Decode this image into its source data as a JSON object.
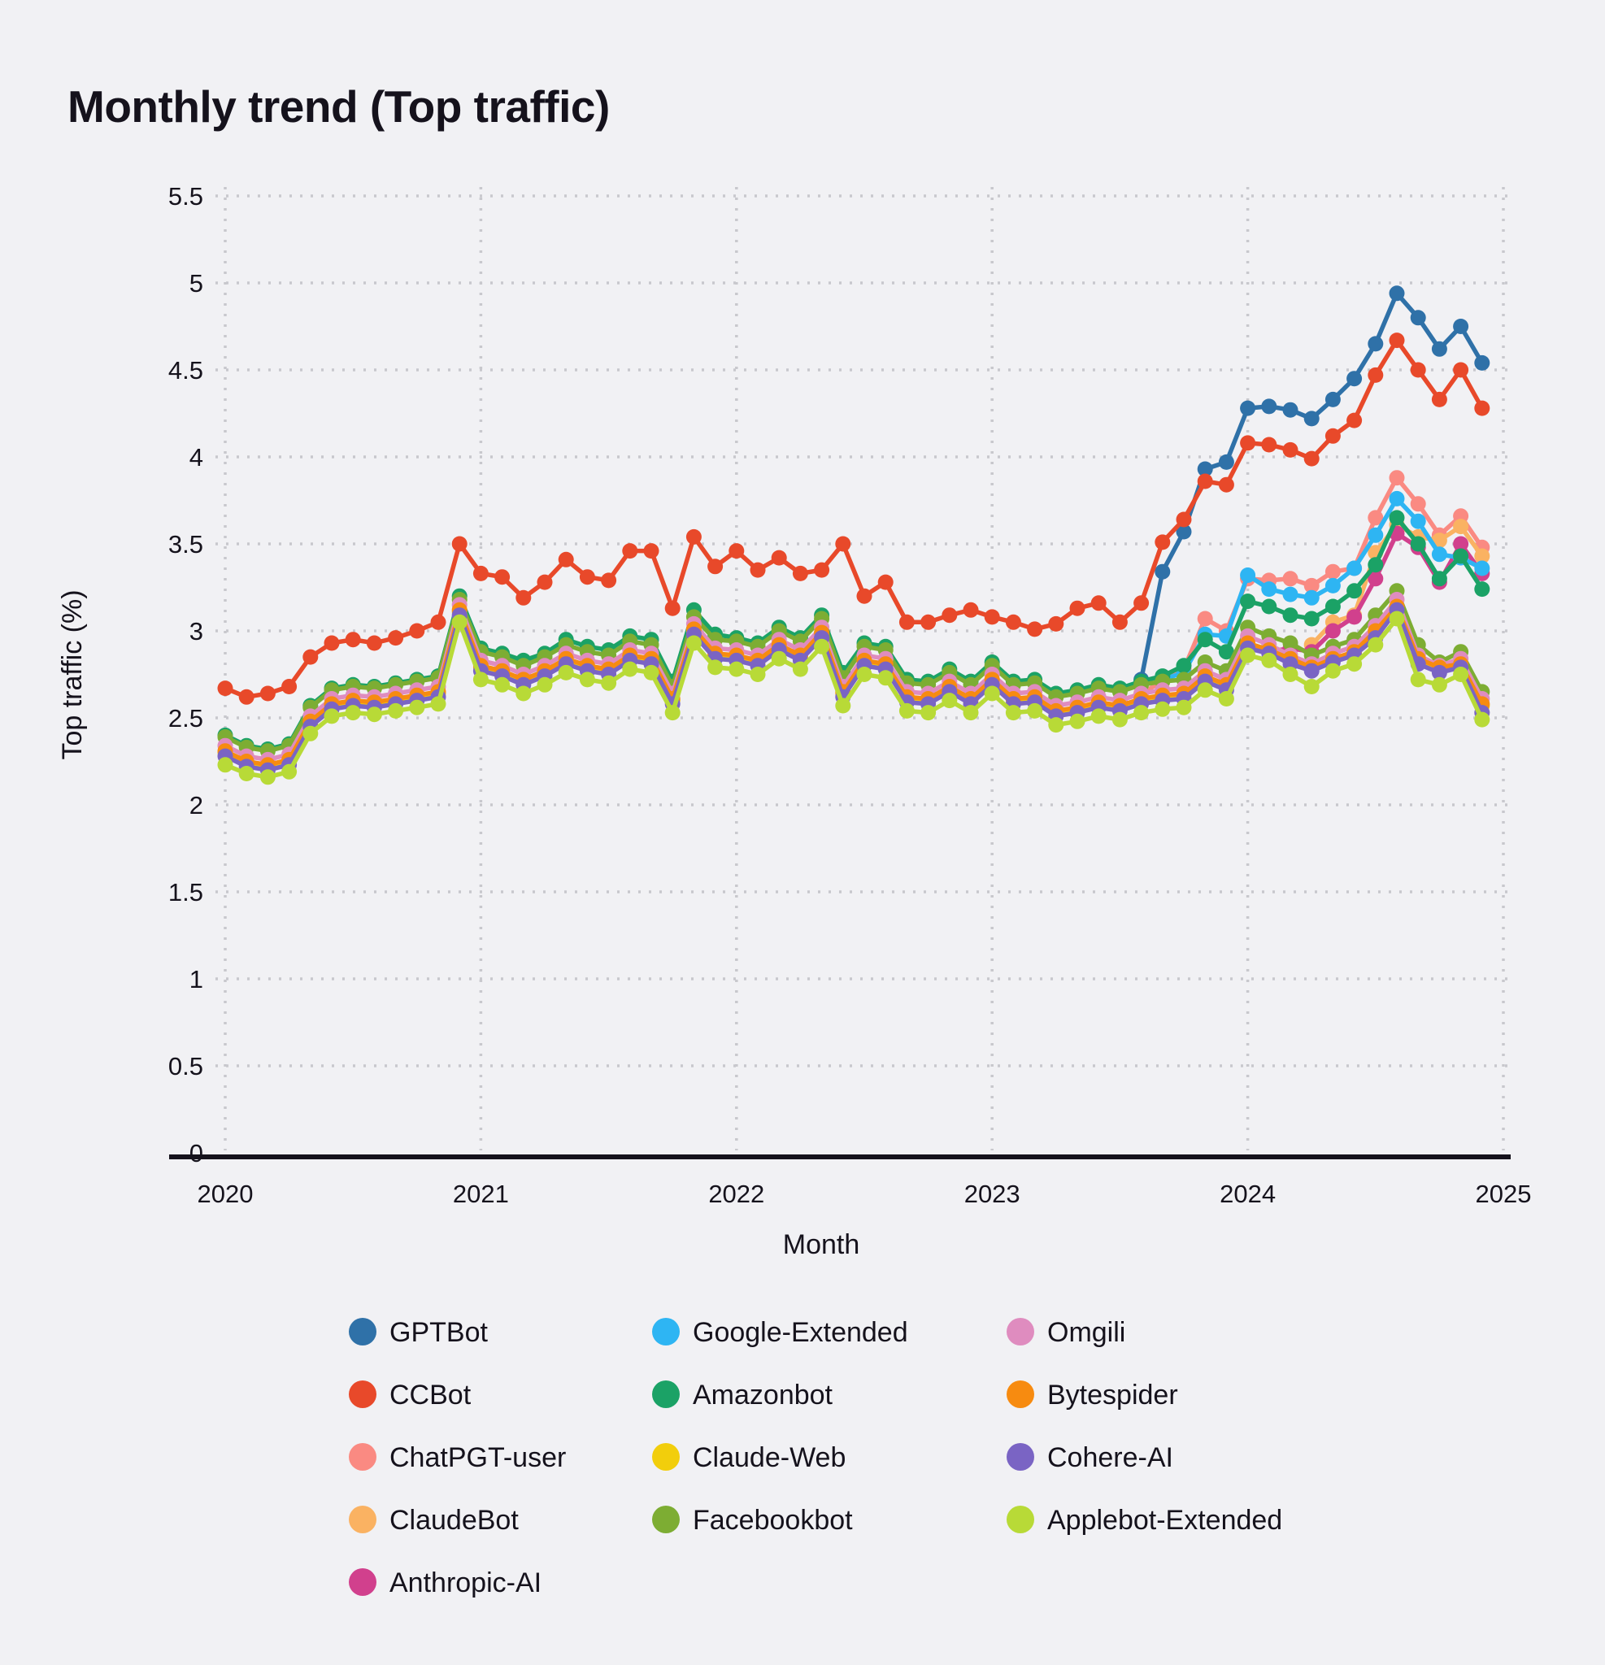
{
  "title": "Monthly trend (Top traffic)",
  "chart_data": {
    "type": "line",
    "title": "Monthly trend (Top traffic)",
    "xlabel": "Month",
    "ylabel": "Top traffic (%)",
    "ylim": [
      0,
      5.5
    ],
    "grid": "dotted",
    "legend_position": "bottom",
    "ytick_labels": [
      "0",
      "0.5",
      "1",
      "1.5",
      "2",
      "2.5",
      "3",
      "3.5",
      "4",
      "4.5",
      "5",
      "5.5"
    ],
    "xtick_labels": [
      "2020",
      "2021",
      "2022",
      "2023",
      "2024",
      "2025"
    ],
    "months": [
      "2020-01",
      "2020-02",
      "2020-03",
      "2020-04",
      "2020-05",
      "2020-06",
      "2020-07",
      "2020-08",
      "2020-09",
      "2020-10",
      "2020-11",
      "2020-12",
      "2021-01",
      "2021-02",
      "2021-03",
      "2021-04",
      "2021-05",
      "2021-06",
      "2021-07",
      "2021-08",
      "2021-09",
      "2021-10",
      "2021-11",
      "2021-12",
      "2022-01",
      "2022-02",
      "2022-03",
      "2022-04",
      "2022-05",
      "2022-06",
      "2022-07",
      "2022-08",
      "2022-09",
      "2022-10",
      "2022-11",
      "2022-12",
      "2023-01",
      "2023-02",
      "2023-03",
      "2023-04",
      "2023-05",
      "2023-06",
      "2023-07",
      "2023-08",
      "2023-09",
      "2023-10",
      "2023-11",
      "2023-12",
      "2024-01",
      "2024-02",
      "2024-03",
      "2024-04",
      "2024-05",
      "2024-06",
      "2024-07",
      "2024-08",
      "2024-09",
      "2024-10",
      "2024-11",
      "2024-12"
    ],
    "series": [
      {
        "name": "GPTBot",
        "color": "#2f71a8",
        "start": 43,
        "values": [
          2.72,
          3.34,
          3.57,
          3.93,
          3.97,
          4.28,
          4.29,
          4.27,
          4.22,
          4.33,
          4.45,
          4.65,
          4.94,
          4.8,
          4.62,
          4.75,
          4.54
        ]
      },
      {
        "name": "CCBot",
        "color": "#e8492a",
        "start": 0,
        "values": [
          2.67,
          2.62,
          2.64,
          2.68,
          2.85,
          2.93,
          2.95,
          2.93,
          2.96,
          3.0,
          3.05,
          3.5,
          3.33,
          3.31,
          3.19,
          3.28,
          3.41,
          3.31,
          3.29,
          3.46,
          3.46,
          3.13,
          3.54,
          3.37,
          3.46,
          3.35,
          3.42,
          3.33,
          3.35,
          3.5,
          3.2,
          3.28,
          3.05,
          3.05,
          3.09,
          3.12,
          3.08,
          3.05,
          3.01,
          3.04,
          3.13,
          3.16,
          3.05,
          3.16,
          3.51,
          3.64,
          3.86,
          3.84,
          4.08,
          4.07,
          4.04,
          3.99,
          4.12,
          4.21,
          4.47,
          4.67,
          4.5,
          4.33,
          4.5,
          4.28
        ]
      },
      {
        "name": "ChatPGT-user",
        "color": "#fa8a82",
        "start": 43,
        "values": [
          2.64,
          2.71,
          2.78,
          3.07,
          3.0,
          3.3,
          3.29,
          3.3,
          3.26,
          3.34,
          3.36,
          3.65,
          3.88,
          3.73,
          3.55,
          3.66,
          3.48
        ]
      },
      {
        "name": "ClaudeBot",
        "color": "#fab262",
        "start": 51,
        "values": [
          2.92,
          3.05,
          3.09,
          3.45,
          3.61,
          3.54,
          3.52,
          3.6,
          3.43
        ]
      },
      {
        "name": "Anthropic-AI",
        "color": "#d1408d",
        "start": 49,
        "values": [
          2.88,
          2.9,
          2.88,
          3.0,
          3.08,
          3.3,
          3.56,
          3.48,
          3.28,
          3.5,
          3.33
        ]
      },
      {
        "name": "Google-Extended",
        "color": "#2eb5f3",
        "start": 44,
        "values": [
          2.72,
          2.76,
          2.98,
          2.97,
          3.32,
          3.24,
          3.21,
          3.19,
          3.26,
          3.36,
          3.55,
          3.76,
          3.63,
          3.44,
          3.42,
          3.36
        ]
      },
      {
        "name": "Amazonbot",
        "color": "#1ba266",
        "start": 0,
        "values": [
          2.4,
          2.34,
          2.32,
          2.35,
          2.57,
          2.67,
          2.69,
          2.68,
          2.7,
          2.72,
          2.74,
          3.2,
          2.9,
          2.87,
          2.83,
          2.87,
          2.95,
          2.91,
          2.89,
          2.97,
          2.95,
          2.71,
          3.12,
          2.98,
          2.96,
          2.93,
          3.02,
          2.96,
          3.09,
          2.76,
          2.93,
          2.91,
          2.72,
          2.71,
          2.78,
          2.71,
          2.82,
          2.71,
          2.72,
          2.64,
          2.66,
          2.69,
          2.67,
          2.71,
          2.74,
          2.8,
          2.95,
          2.88,
          3.17,
          3.14,
          3.09,
          3.07,
          3.14,
          3.23,
          3.38,
          3.65,
          3.5,
          3.3,
          3.43,
          3.24
        ]
      },
      {
        "name": "Claude-Web",
        "color": "#f2ce0c",
        "start": 0,
        "values": [
          2.3,
          2.24,
          2.22,
          2.25,
          2.47,
          2.57,
          2.59,
          2.58,
          2.6,
          2.62,
          2.64,
          3.11,
          2.79,
          2.76,
          2.71,
          2.76,
          2.83,
          2.79,
          2.77,
          2.85,
          2.83,
          2.6,
          3.0,
          2.86,
          2.85,
          2.82,
          2.91,
          2.85,
          2.98,
          2.64,
          2.82,
          2.8,
          2.61,
          2.6,
          2.67,
          2.6,
          2.71,
          2.6,
          2.61,
          2.53,
          2.55,
          2.58,
          2.56,
          2.6,
          2.62,
          2.63,
          2.73,
          2.68,
          2.92,
          2.88,
          2.83,
          2.78,
          2.83,
          2.87,
          2.99,
          3.13,
          2.83,
          2.78,
          2.8,
          2.57
        ]
      },
      {
        "name": "Facebookbot",
        "color": "#7dad33",
        "start": 0,
        "values": [
          2.39,
          2.33,
          2.31,
          2.34,
          2.56,
          2.66,
          2.68,
          2.67,
          2.69,
          2.71,
          2.73,
          3.18,
          2.88,
          2.85,
          2.8,
          2.85,
          2.92,
          2.88,
          2.86,
          2.94,
          2.92,
          2.68,
          3.08,
          2.95,
          2.94,
          2.91,
          3.0,
          2.94,
          3.07,
          2.73,
          2.91,
          2.89,
          2.7,
          2.69,
          2.76,
          2.69,
          2.8,
          2.69,
          2.7,
          2.62,
          2.64,
          2.67,
          2.65,
          2.69,
          2.71,
          2.72,
          2.82,
          2.77,
          3.02,
          2.97,
          2.93,
          2.86,
          2.91,
          2.95,
          3.09,
          3.23,
          2.92,
          2.82,
          2.88,
          2.65
        ]
      },
      {
        "name": "Omgili",
        "color": "#df8cbf",
        "start": 0,
        "values": [
          2.34,
          2.28,
          2.26,
          2.29,
          2.51,
          2.61,
          2.63,
          2.62,
          2.64,
          2.66,
          2.68,
          3.15,
          2.83,
          2.8,
          2.75,
          2.8,
          2.87,
          2.83,
          2.81,
          2.89,
          2.87,
          2.64,
          3.04,
          2.9,
          2.89,
          2.86,
          2.95,
          2.89,
          3.02,
          2.68,
          2.86,
          2.84,
          2.65,
          2.64,
          2.71,
          2.64,
          2.75,
          2.64,
          2.65,
          2.57,
          2.59,
          2.62,
          2.6,
          2.64,
          2.66,
          2.67,
          2.77,
          2.72,
          2.97,
          2.92,
          2.86,
          2.81,
          2.87,
          2.91,
          3.03,
          3.18,
          2.86,
          2.8,
          2.84,
          2.61
        ]
      },
      {
        "name": "Bytespider",
        "color": "#f78b10",
        "start": 0,
        "values": [
          2.31,
          2.25,
          2.23,
          2.26,
          2.48,
          2.58,
          2.6,
          2.59,
          2.61,
          2.63,
          2.65,
          3.12,
          2.8,
          2.77,
          2.72,
          2.77,
          2.84,
          2.8,
          2.78,
          2.86,
          2.84,
          2.61,
          3.01,
          2.87,
          2.86,
          2.83,
          2.92,
          2.86,
          2.99,
          2.65,
          2.83,
          2.81,
          2.62,
          2.61,
          2.68,
          2.61,
          2.72,
          2.61,
          2.62,
          2.54,
          2.56,
          2.59,
          2.57,
          2.61,
          2.63,
          2.64,
          2.74,
          2.69,
          2.93,
          2.89,
          2.84,
          2.79,
          2.84,
          2.88,
          3.0,
          3.14,
          2.84,
          2.79,
          2.81,
          2.58
        ]
      },
      {
        "name": "Cohere-AI",
        "color": "#7a64c4",
        "start": 0,
        "values": [
          2.28,
          2.22,
          2.2,
          2.23,
          2.45,
          2.55,
          2.57,
          2.56,
          2.58,
          2.6,
          2.62,
          3.09,
          2.77,
          2.74,
          2.69,
          2.74,
          2.81,
          2.77,
          2.75,
          2.83,
          2.81,
          2.58,
          2.98,
          2.84,
          2.83,
          2.8,
          2.89,
          2.83,
          2.96,
          2.62,
          2.8,
          2.78,
          2.59,
          2.58,
          2.65,
          2.58,
          2.69,
          2.58,
          2.59,
          2.51,
          2.53,
          2.56,
          2.54,
          2.58,
          2.6,
          2.61,
          2.71,
          2.66,
          2.9,
          2.87,
          2.81,
          2.77,
          2.82,
          2.86,
          2.96,
          3.12,
          2.81,
          2.76,
          2.79,
          2.53
        ]
      },
      {
        "name": "Applebot-Extended",
        "color": "#b8da37",
        "start": 0,
        "values": [
          2.23,
          2.18,
          2.16,
          2.19,
          2.41,
          2.51,
          2.53,
          2.52,
          2.54,
          2.56,
          2.58,
          3.05,
          2.72,
          2.69,
          2.64,
          2.69,
          2.76,
          2.72,
          2.7,
          2.78,
          2.76,
          2.53,
          2.93,
          2.79,
          2.78,
          2.75,
          2.84,
          2.78,
          2.91,
          2.57,
          2.75,
          2.73,
          2.54,
          2.53,
          2.6,
          2.53,
          2.64,
          2.53,
          2.54,
          2.46,
          2.48,
          2.51,
          2.49,
          2.53,
          2.55,
          2.56,
          2.66,
          2.61,
          2.86,
          2.83,
          2.75,
          2.68,
          2.77,
          2.81,
          2.92,
          3.07,
          2.72,
          2.69,
          2.75,
          2.49
        ]
      }
    ]
  },
  "legend": {
    "order": [
      "GPTBot",
      "CCBot",
      "ChatPGT-user",
      "ClaudeBot",
      "Anthropic-AI",
      "Google-Extended",
      "Amazonbot",
      "Claude-Web",
      "Facebookbot",
      "Omgili",
      "Bytespider",
      "Cohere-AI",
      "Applebot-Extended"
    ]
  },
  "style": {
    "background": "#f1f1f4",
    "grid_color": "#c8c8cd",
    "axis_color": "#15121c",
    "text_color": "#15121c"
  }
}
